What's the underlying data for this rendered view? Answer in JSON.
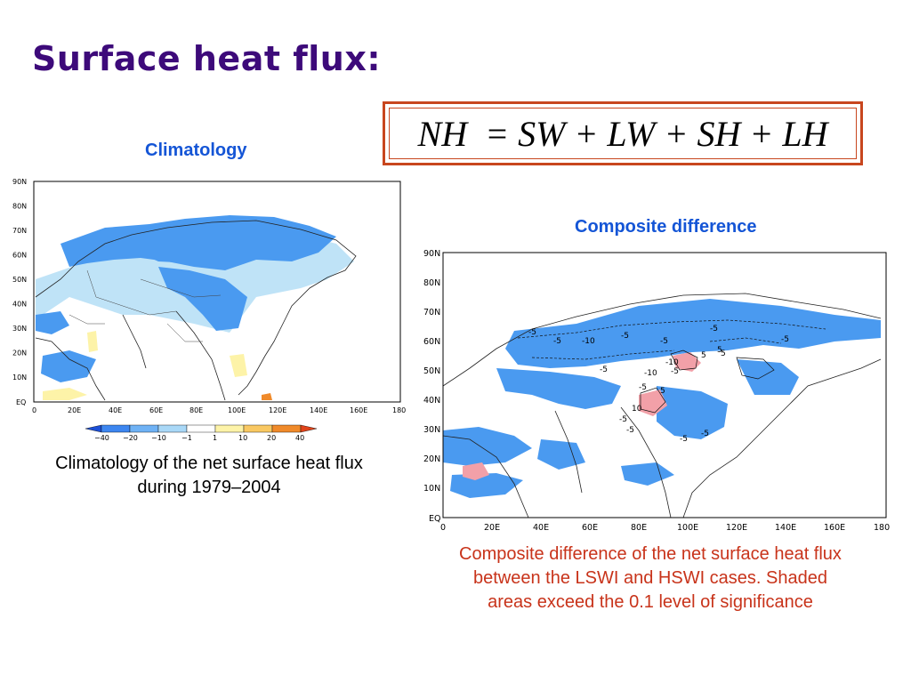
{
  "slide": {
    "title": "Surface heat flux:",
    "equation": "NH  = SW + LW + SH + LH"
  },
  "climatology": {
    "heading": "Climatology",
    "caption_line1": "Climatology of the net surface heat flux",
    "caption_line2": "during 1979–2004",
    "lat_labels": [
      "90N",
      "80N",
      "70N",
      "60N",
      "50N",
      "40N",
      "30N",
      "20N",
      "10N",
      "EQ"
    ],
    "lon_labels": [
      "0",
      "20E",
      "40E",
      "60E",
      "80E",
      "100E",
      "120E",
      "140E",
      "160E",
      "180"
    ],
    "colorbar": {
      "levels": [
        "−40",
        "−20",
        "−10",
        "−1",
        "1",
        "10",
        "20",
        "40"
      ],
      "colors": [
        "#1c4fd6",
        "#3d86f0",
        "#6fb2f5",
        "#a9d8f7",
        "#ffffff",
        "#fdf3a8",
        "#f9c862",
        "#f08a2a",
        "#e0431a"
      ]
    }
  },
  "composite": {
    "heading": "Composite difference",
    "caption_line1": "Composite difference of the net surface heat flux",
    "caption_line2": "between the LSWI and HSWI cases. Shaded",
    "caption_line3": "areas exceed the 0.1 level of significance",
    "lat_labels": [
      "90N",
      "80N",
      "70N",
      "60N",
      "50N",
      "40N",
      "30N",
      "20N",
      "10N",
      "EQ"
    ],
    "lon_labels": [
      "0",
      "20E",
      "40E",
      "60E",
      "80E",
      "100E",
      "120E",
      "140E",
      "160E",
      "180"
    ],
    "contour_labels": [
      "-5",
      "-5",
      "-5",
      "-10",
      "-5",
      "-5",
      "-5",
      "5",
      "-5",
      "-10",
      "-5",
      "5",
      "-5",
      "-10",
      "10",
      "-5",
      "5",
      "-5",
      "-5",
      "5",
      "-5"
    ]
  },
  "colors": {
    "title": "#3d0a7a",
    "heading": "#1455d6",
    "caption_red": "#c8331a",
    "equation_border": "#c8461e",
    "shade_neg": "#4a9af0",
    "shade_light": "#bfe3f7",
    "shade_pos": "#f2a0a8"
  }
}
